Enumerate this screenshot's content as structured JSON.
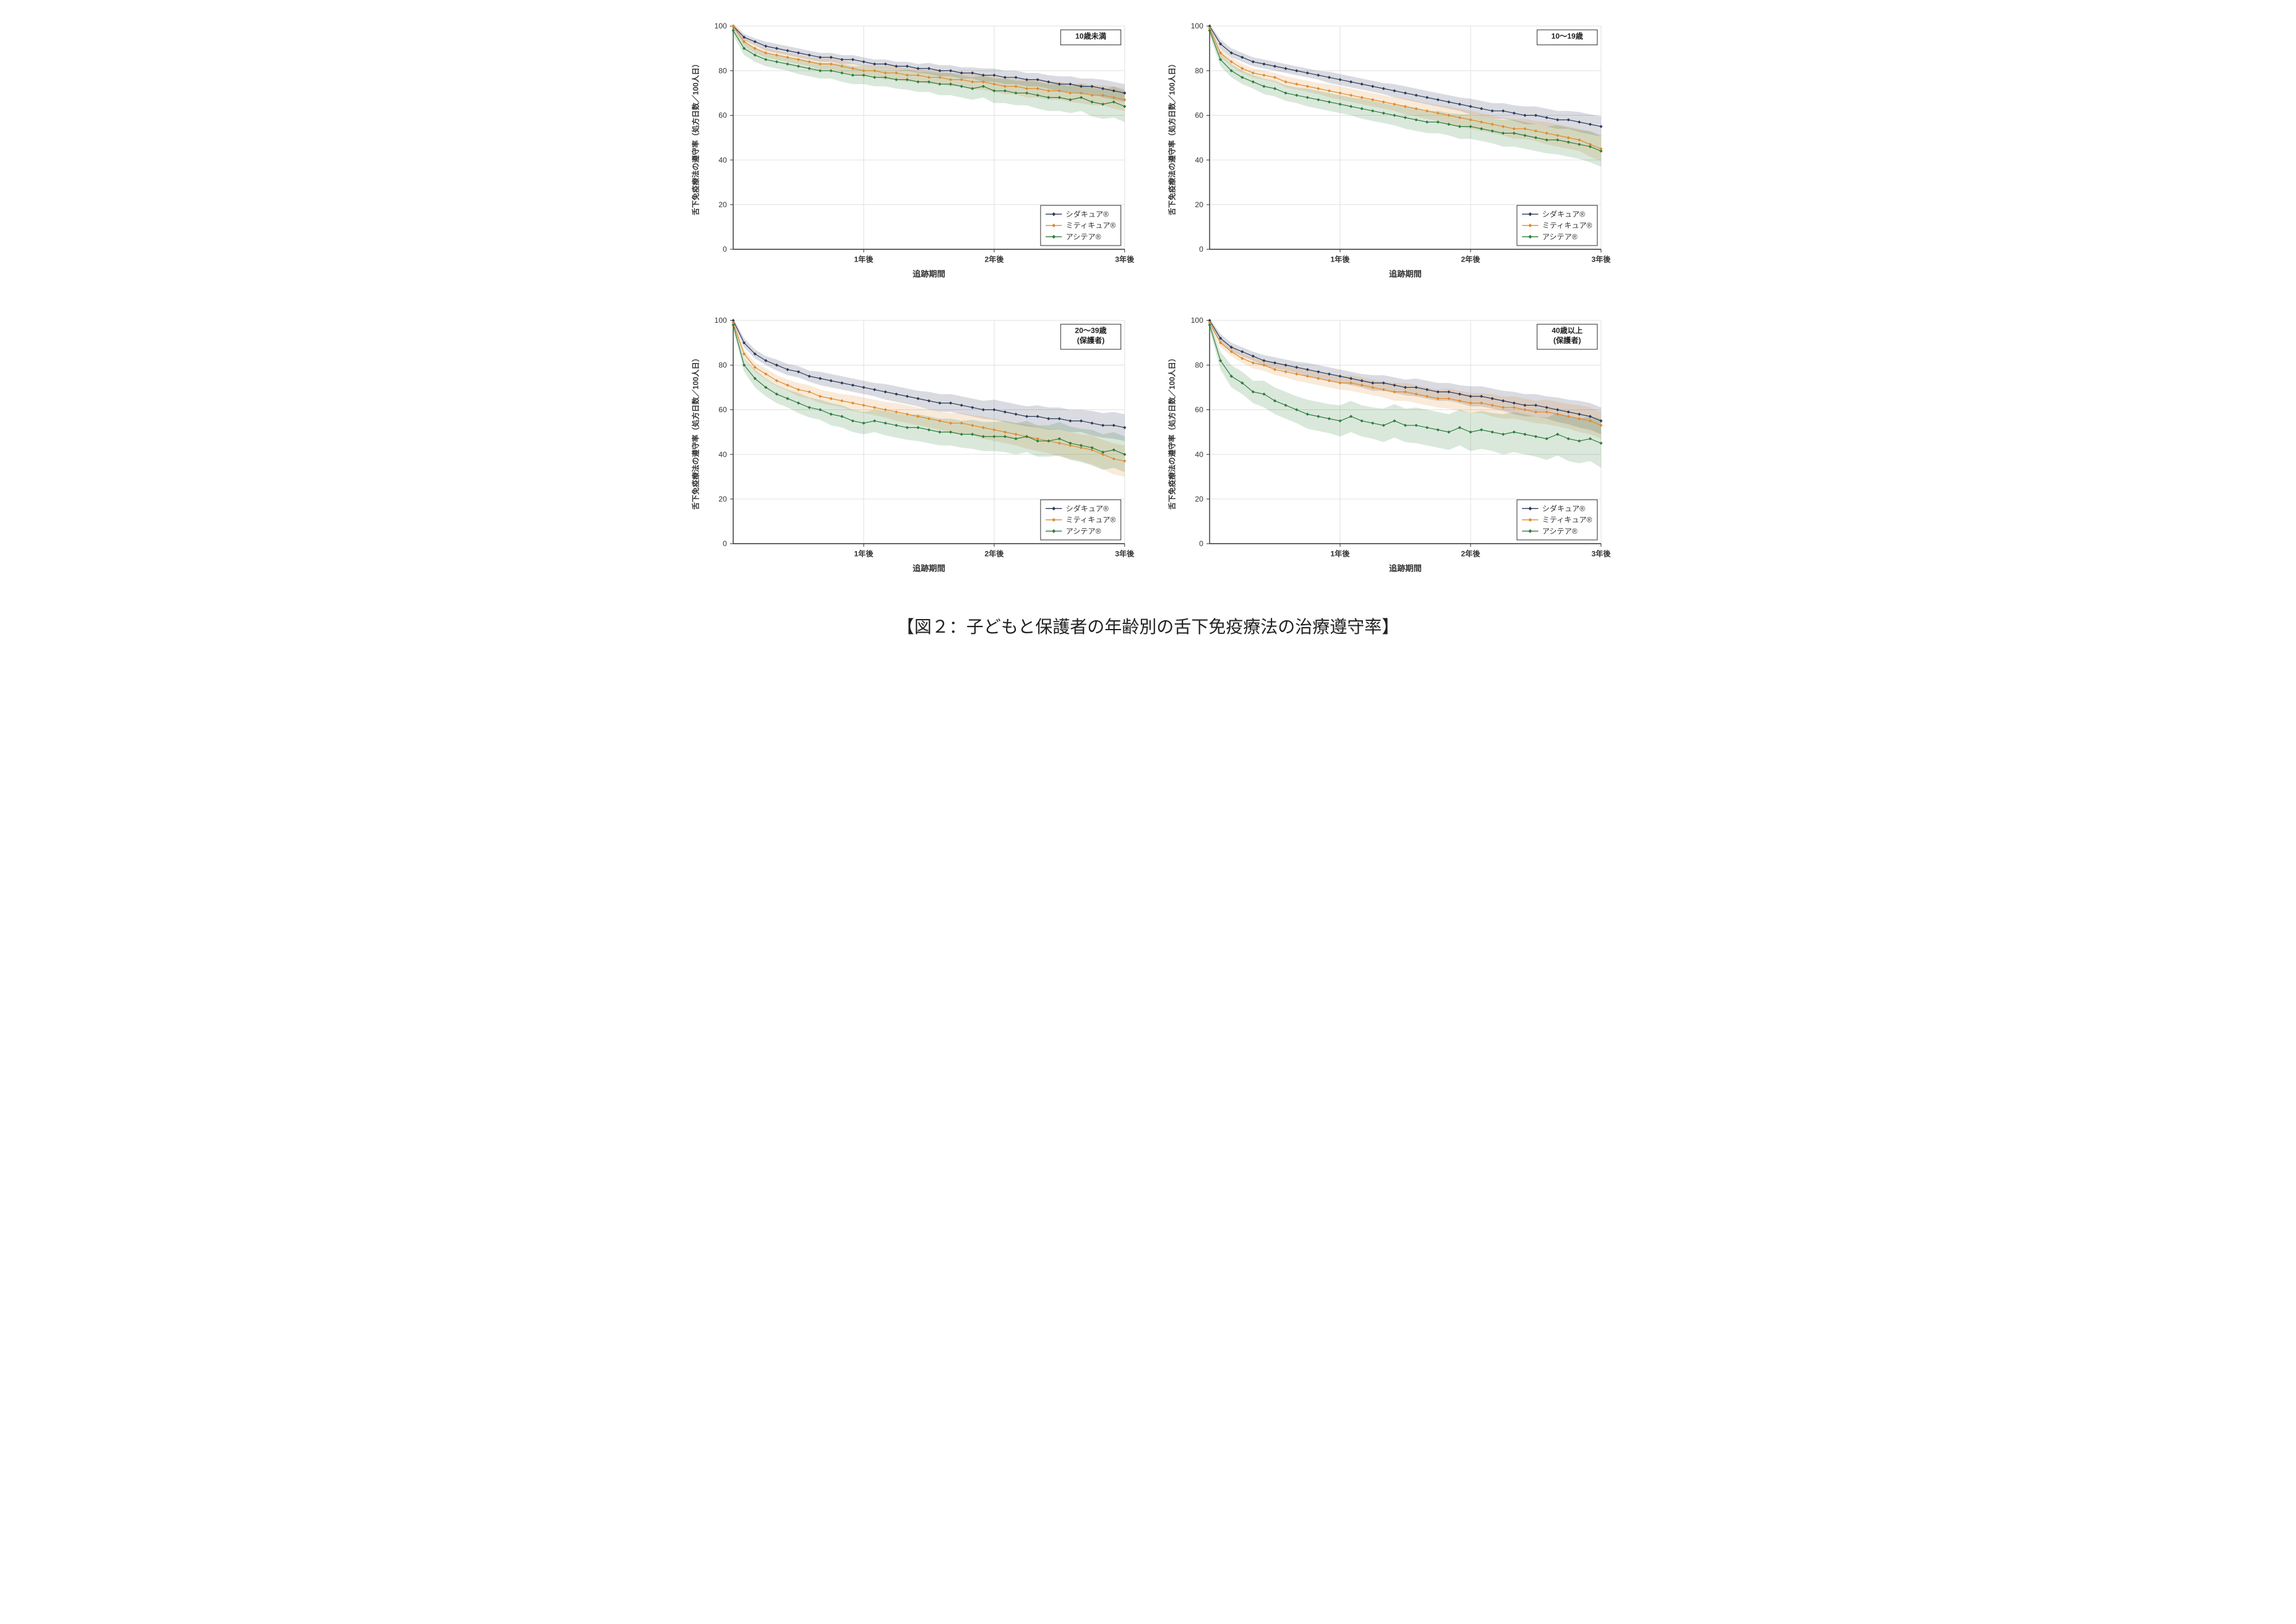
{
  "figure_caption": "【図２：子どもと保護者の年齢別の舌下免疫療法の治療遵守率】",
  "common": {
    "ylabel": "舌下免疫療法の遵守率（処方日数／100人日）",
    "xlabel": "追跡期間",
    "ylim": [
      0,
      100
    ],
    "ytick_step": 20,
    "xticks_labels": [
      "1年後",
      "2年後",
      "3年後"
    ],
    "xticks_positions": [
      12,
      24,
      36
    ],
    "x_max_months": 36,
    "background_color": "#ffffff",
    "grid_color": "#e0e0e0",
    "axis_color": "#333333",
    "label_fontsize": 12,
    "tick_fontsize": 12,
    "ci_opacity": 0.18,
    "marker_size": 2.2,
    "line_width": 1.2,
    "legend_box_border": "#333333",
    "panel_label_border": "#333333"
  },
  "series_meta": [
    {
      "key": "shidacure",
      "label": "シダキュア®",
      "color": "#2d3a5a",
      "marker": "diamond"
    },
    {
      "key": "miticure",
      "label": "ミティキュア®",
      "color": "#e08a2c",
      "marker": "diamond"
    },
    {
      "key": "acitea",
      "label": "アシテア®",
      "color": "#2e7d3a",
      "marker": "diamond"
    }
  ],
  "panels": [
    {
      "id": "p1",
      "panel_label": "10歳未満",
      "panel_label_lines": [
        "10歳未満"
      ],
      "series": {
        "shidacure": {
          "y": [
            100,
            95,
            93,
            91,
            90,
            89,
            88,
            87,
            86,
            86,
            85,
            85,
            84,
            83,
            83,
            82,
            82,
            81,
            81,
            80,
            80,
            79,
            79,
            78,
            78,
            77,
            77,
            76,
            76,
            75,
            74,
            74,
            73,
            73,
            72,
            71,
            70
          ],
          "ci": [
            1,
            1.5,
            1.5,
            2,
            2,
            2,
            2,
            2,
            2,
            2,
            2,
            2,
            2,
            2,
            2,
            2,
            2,
            2,
            2.5,
            2.5,
            2.5,
            2.5,
            2.5,
            3,
            3,
            3,
            3,
            3,
            3,
            3,
            3.5,
            3.5,
            3.5,
            3.5,
            4,
            4,
            4
          ]
        },
        "miticure": {
          "y": [
            100,
            93,
            90,
            88,
            87,
            86,
            85,
            84,
            83,
            83,
            82,
            81,
            80,
            80,
            79,
            79,
            78,
            78,
            77,
            77,
            76,
            76,
            75,
            75,
            74,
            73,
            73,
            72,
            72,
            71,
            71,
            70,
            70,
            69,
            69,
            68,
            67
          ],
          "ci": [
            1,
            2,
            2,
            2,
            2,
            2,
            2,
            2,
            2.5,
            2.5,
            2.5,
            2.5,
            2.5,
            2.5,
            3,
            3,
            3,
            3,
            3,
            3,
            3,
            3,
            3.5,
            3.5,
            3.5,
            3.5,
            3.5,
            4,
            4,
            4,
            4,
            4,
            4.5,
            4.5,
            4.5,
            5,
            5
          ]
        },
        "acitea": {
          "y": [
            98,
            90,
            87,
            85,
            84,
            83,
            82,
            81,
            80,
            80,
            79,
            78,
            78,
            77,
            77,
            76,
            76,
            75,
            75,
            74,
            74,
            73,
            72,
            73,
            71,
            71,
            70,
            70,
            69,
            68,
            68,
            67,
            68,
            66,
            65,
            66,
            64
          ],
          "ci": [
            2,
            3,
            3,
            3,
            3,
            3,
            3.5,
            3.5,
            3.5,
            3.5,
            4,
            4,
            4,
            4,
            4,
            4,
            4.5,
            4.5,
            4.5,
            5,
            5,
            5,
            5,
            5,
            5.5,
            5.5,
            5.5,
            5.5,
            6,
            6,
            6,
            6,
            6,
            6.5,
            6.5,
            7,
            7
          ]
        }
      }
    },
    {
      "id": "p2",
      "panel_label": "10〜19歳",
      "panel_label_lines": [
        "10〜19歳"
      ],
      "series": {
        "shidacure": {
          "y": [
            100,
            92,
            88,
            86,
            84,
            83,
            82,
            81,
            80,
            79,
            78,
            77,
            76,
            75,
            74,
            73,
            72,
            71,
            70,
            69,
            68,
            67,
            66,
            65,
            64,
            63,
            62,
            62,
            61,
            60,
            60,
            59,
            58,
            58,
            57,
            56,
            55
          ],
          "ci": [
            1,
            2,
            2,
            2,
            2,
            2,
            2,
            2,
            2,
            2,
            2,
            2.5,
            2.5,
            2.5,
            2.5,
            2.5,
            2.5,
            3,
            3,
            3,
            3,
            3,
            3,
            3,
            3.5,
            3.5,
            3.5,
            3.5,
            3.5,
            4,
            4,
            4,
            4,
            4,
            4.5,
            4.5,
            4.5
          ]
        },
        "miticure": {
          "y": [
            99,
            88,
            84,
            81,
            79,
            78,
            77,
            75,
            74,
            73,
            72,
            71,
            70,
            69,
            68,
            67,
            66,
            65,
            64,
            63,
            62,
            61,
            60,
            59,
            58,
            57,
            56,
            55,
            54,
            54,
            53,
            52,
            51,
            50,
            49,
            47,
            45
          ],
          "ci": [
            1,
            2,
            2,
            2,
            2,
            2,
            2,
            2.5,
            2.5,
            2.5,
            2.5,
            3,
            3,
            3,
            3,
            3,
            3,
            3,
            3.5,
            3.5,
            3.5,
            3.5,
            4,
            4,
            4,
            4,
            4,
            4,
            4.5,
            4.5,
            4.5,
            5,
            5,
            5,
            5,
            5.5,
            5.5
          ]
        },
        "acitea": {
          "y": [
            98,
            85,
            80,
            77,
            75,
            73,
            72,
            70,
            69,
            68,
            67,
            66,
            65,
            64,
            63,
            62,
            61,
            60,
            59,
            58,
            57,
            57,
            56,
            55,
            55,
            54,
            53,
            52,
            52,
            51,
            50,
            49,
            49,
            48,
            47,
            46,
            44
          ],
          "ci": [
            2,
            3,
            3,
            3,
            3,
            3.5,
            3.5,
            3.5,
            3.5,
            4,
            4,
            4,
            4,
            4,
            4.5,
            4.5,
            4.5,
            4.5,
            5,
            5,
            5,
            5,
            5,
            5.5,
            5.5,
            5.5,
            5.5,
            6,
            6,
            6,
            6,
            6,
            6.5,
            6.5,
            6.5,
            7,
            7
          ]
        }
      }
    },
    {
      "id": "p3",
      "panel_label": "20〜39歳 (保護者)",
      "panel_label_lines": [
        "20〜39歳",
        "(保護者)"
      ],
      "series": {
        "shidacure": {
          "y": [
            100,
            90,
            85,
            82,
            80,
            78,
            77,
            75,
            74,
            73,
            72,
            71,
            70,
            69,
            68,
            67,
            66,
            65,
            64,
            63,
            63,
            62,
            61,
            60,
            60,
            59,
            58,
            57,
            57,
            56,
            56,
            55,
            55,
            54,
            53,
            53,
            52
          ],
          "ci": [
            1,
            2,
            2,
            2,
            2.5,
            2.5,
            2.5,
            2.5,
            3,
            3,
            3,
            3,
            3,
            3,
            3.5,
            3.5,
            3.5,
            3.5,
            4,
            4,
            4,
            4,
            4,
            4,
            4.5,
            4.5,
            4.5,
            4.5,
            5,
            5,
            5,
            5,
            5,
            5.5,
            5.5,
            6,
            6
          ]
        },
        "miticure": {
          "y": [
            99,
            85,
            79,
            76,
            73,
            71,
            69,
            68,
            66,
            65,
            64,
            63,
            62,
            61,
            60,
            59,
            58,
            57,
            56,
            55,
            54,
            54,
            53,
            52,
            51,
            50,
            49,
            48,
            47,
            46,
            45,
            44,
            43,
            42,
            40,
            38,
            37
          ],
          "ci": [
            1,
            2,
            2,
            2.5,
            2.5,
            2.5,
            3,
            3,
            3,
            3,
            3,
            3.5,
            3.5,
            3.5,
            3.5,
            4,
            4,
            4,
            4,
            4,
            4.5,
            4.5,
            4.5,
            5,
            5,
            5,
            5,
            5.5,
            5.5,
            5.5,
            6,
            6,
            6,
            6.5,
            6.5,
            7,
            7
          ]
        },
        "acitea": {
          "y": [
            98,
            80,
            74,
            70,
            67,
            65,
            63,
            61,
            60,
            58,
            57,
            55,
            54,
            55,
            54,
            53,
            52,
            52,
            51,
            50,
            50,
            49,
            49,
            48,
            48,
            48,
            47,
            48,
            46,
            46,
            47,
            45,
            44,
            43,
            41,
            42,
            40
          ],
          "ci": [
            2,
            3,
            4,
            4,
            4,
            4,
            4.5,
            4.5,
            4.5,
            5,
            5,
            5,
            5,
            5,
            5.5,
            5.5,
            5.5,
            6,
            6,
            6,
            6,
            6,
            6.5,
            6.5,
            6.5,
            7,
            7,
            7,
            7,
            7,
            7.5,
            7.5,
            7.5,
            8,
            8,
            8,
            8
          ]
        }
      }
    },
    {
      "id": "p4",
      "panel_label": "40歳以上 (保護者)",
      "panel_label_lines": [
        "40歳以上",
        "(保護者)"
      ],
      "series": {
        "shidacure": {
          "y": [
            100,
            92,
            88,
            86,
            84,
            82,
            81,
            80,
            79,
            78,
            77,
            76,
            75,
            74,
            73,
            72,
            72,
            71,
            70,
            70,
            69,
            68,
            68,
            67,
            66,
            66,
            65,
            64,
            63,
            62,
            62,
            61,
            60,
            59,
            58,
            57,
            55
          ],
          "ci": [
            1,
            2,
            2,
            2,
            2,
            2.5,
            2.5,
            2.5,
            2.5,
            3,
            3,
            3,
            3,
            3,
            3,
            3.5,
            3.5,
            3.5,
            3.5,
            4,
            4,
            4,
            4,
            4,
            4.5,
            4.5,
            4.5,
            4.5,
            5,
            5,
            5,
            5,
            5.5,
            5.5,
            6,
            6,
            6
          ]
        },
        "miticure": {
          "y": [
            99,
            90,
            86,
            83,
            81,
            80,
            78,
            77,
            76,
            75,
            74,
            73,
            72,
            72,
            71,
            70,
            69,
            68,
            68,
            67,
            66,
            65,
            65,
            64,
            63,
            63,
            62,
            61,
            61,
            60,
            59,
            59,
            58,
            57,
            56,
            55,
            53
          ],
          "ci": [
            1,
            2,
            2,
            2,
            2.5,
            2.5,
            2.5,
            2.5,
            3,
            3,
            3,
            3,
            3,
            3.5,
            3.5,
            3.5,
            3.5,
            4,
            4,
            4,
            4,
            4,
            4.5,
            4.5,
            4.5,
            4.5,
            5,
            5,
            5,
            5,
            5,
            5.5,
            5.5,
            5.5,
            6,
            6,
            6
          ]
        },
        "acitea": {
          "y": [
            98,
            82,
            75,
            72,
            68,
            67,
            64,
            62,
            60,
            58,
            57,
            56,
            55,
            57,
            55,
            54,
            53,
            55,
            53,
            53,
            52,
            51,
            50,
            52,
            50,
            51,
            50,
            49,
            50,
            49,
            48,
            47,
            49,
            47,
            46,
            47,
            45
          ],
          "ci": [
            2,
            4,
            5,
            5,
            5,
            6,
            6,
            6,
            6,
            6.5,
            6.5,
            6.5,
            7,
            7,
            7,
            7,
            7.5,
            7.5,
            7.5,
            8,
            8,
            8,
            8,
            8,
            8.5,
            8.5,
            8.5,
            9,
            9,
            9,
            9,
            9.5,
            9.5,
            10,
            10,
            10,
            11
          ]
        }
      }
    }
  ]
}
